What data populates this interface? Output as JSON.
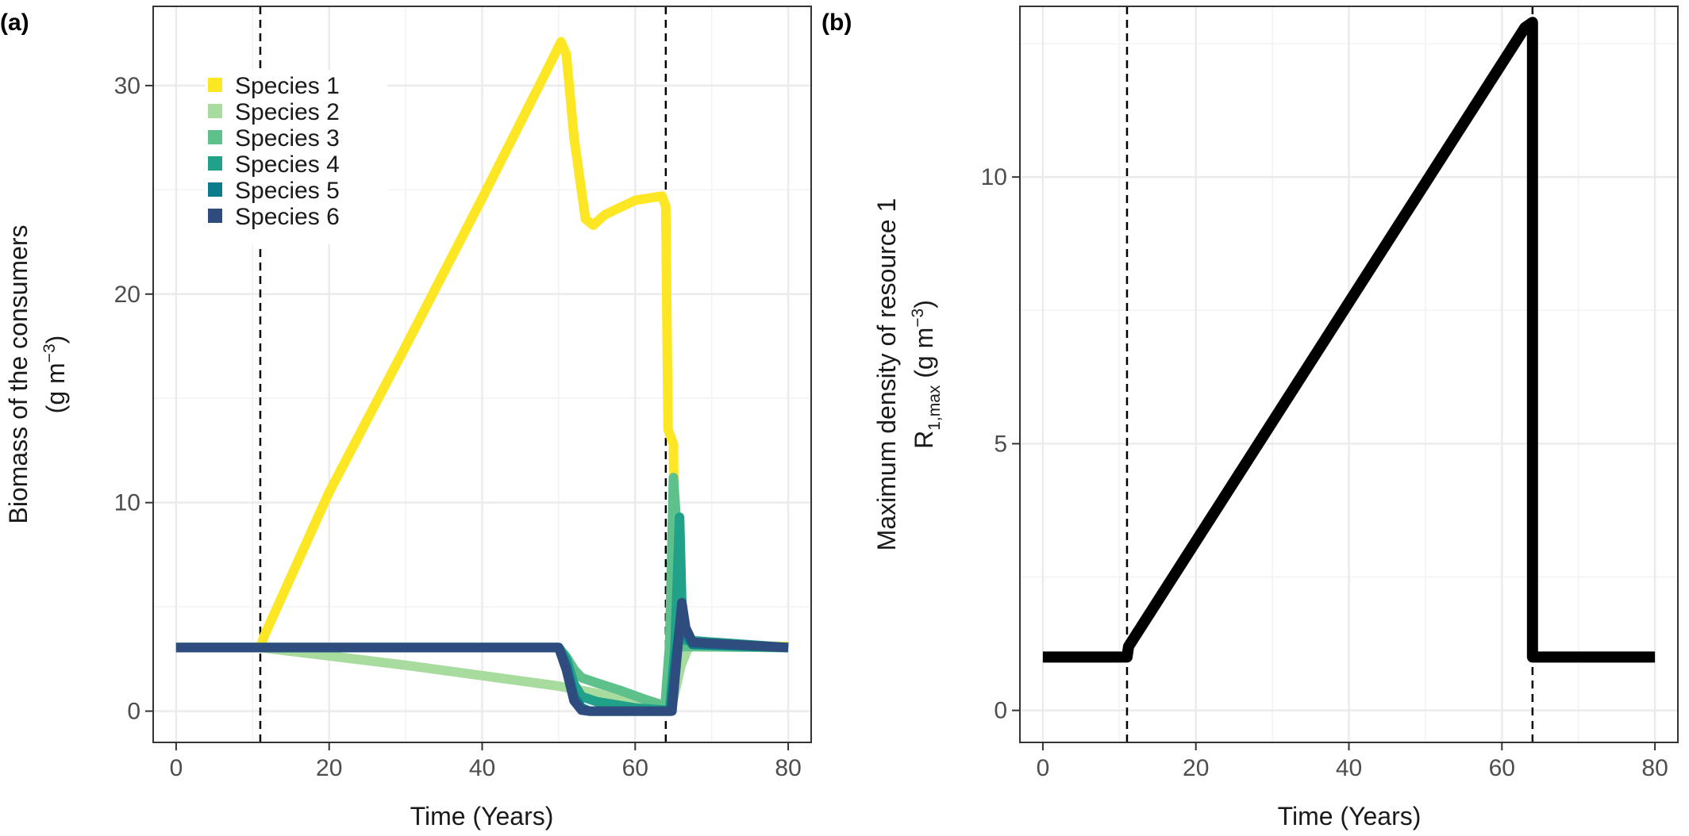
{
  "chart_data": [
    {
      "panel": "(a)",
      "type": "line",
      "xlabel": "Time (Years)",
      "ylabel_line1": "Biomass of the consumers",
      "ylabel_line2_base": "(g m",
      "ylabel_line2_sup": "−3",
      "ylabel_line2_end": ")",
      "xlim": [
        -3,
        83
      ],
      "ylim": [
        -1.5,
        33.8
      ],
      "xticks": [
        0,
        20,
        40,
        60,
        80
      ],
      "yticks": [
        0,
        10,
        20,
        30
      ],
      "grid": true,
      "legend_position": "top-left",
      "vlines": [
        11,
        64
      ],
      "series": [
        {
          "name": "Species 1",
          "color": "#FDE725",
          "points": [
            [
              0,
              3.05
            ],
            [
              11,
              3.05
            ],
            [
              11.5,
              3.6
            ],
            [
              20,
              10.5
            ],
            [
              30,
              17.5
            ],
            [
              40,
              24.6
            ],
            [
              48,
              30.4
            ],
            [
              50.3,
              32.1
            ],
            [
              51,
              31.5
            ],
            [
              52,
              27.5
            ],
            [
              53.5,
              23.6
            ],
            [
              54.5,
              23.3
            ],
            [
              56,
              23.8
            ],
            [
              60,
              24.5
            ],
            [
              63.5,
              24.7
            ],
            [
              64,
              24.2
            ],
            [
              64.3,
              13.5
            ],
            [
              65,
              12.8
            ],
            [
              65.2,
              3.3
            ],
            [
              66,
              3.2
            ],
            [
              70,
              3.1
            ],
            [
              80,
              3.1
            ]
          ]
        },
        {
          "name": "Species 2",
          "color": "#A8DB9E",
          "points": [
            [
              0,
              3.05
            ],
            [
              11,
              3.05
            ],
            [
              30,
              2.2
            ],
            [
              50,
              1.2
            ],
            [
              55,
              0.85
            ],
            [
              60,
              0.35
            ],
            [
              63.9,
              0.1
            ],
            [
              64.5,
              0.15
            ],
            [
              65,
              0.6
            ],
            [
              66,
              2.2
            ],
            [
              67,
              3.1
            ],
            [
              80,
              3.05
            ]
          ]
        },
        {
          "name": "Species 3",
          "color": "#5EC18C",
          "points": [
            [
              0,
              3.05
            ],
            [
              50,
              3.05
            ],
            [
              51,
              2.6
            ],
            [
              52,
              2.0
            ],
            [
              53,
              1.6
            ],
            [
              55,
              1.35
            ],
            [
              58,
              1.0
            ],
            [
              61,
              0.6
            ],
            [
              63.9,
              0.25
            ],
            [
              64.5,
              3.2
            ],
            [
              65,
              11.2
            ],
            [
              65.3,
              9.5
            ],
            [
              65.7,
              3.1
            ],
            [
              80,
              3.05
            ]
          ]
        },
        {
          "name": "Species 4",
          "color": "#21A08A",
          "points": [
            [
              0,
              3.05
            ],
            [
              50,
              3.05
            ],
            [
              51,
              2.5
            ],
            [
              52,
              1.3
            ],
            [
              53,
              0.7
            ],
            [
              55,
              0.45
            ],
            [
              60,
              0.15
            ],
            [
              63.9,
              0.05
            ],
            [
              64.5,
              0.05
            ],
            [
              65.2,
              3.0
            ],
            [
              65.8,
              9.3
            ],
            [
              66.1,
              5.0
            ],
            [
              66.6,
              3.4
            ],
            [
              80,
              3.05
            ]
          ]
        },
        {
          "name": "Species 5",
          "color": "#0C7B8B",
          "points": [
            [
              0,
              3.05
            ],
            [
              50,
              3.05
            ],
            [
              51,
              2.2
            ],
            [
              52,
              0.7
            ],
            [
              53,
              0.15
            ],
            [
              54,
              0
            ],
            [
              63.9,
              0
            ],
            [
              64.6,
              0
            ],
            [
              65.3,
              2.5
            ],
            [
              66,
              4.6
            ],
            [
              66.5,
              3.8
            ],
            [
              67.5,
              3.2
            ],
            [
              80,
              3.05
            ]
          ]
        },
        {
          "name": "Species 6",
          "color": "#2E4C7E",
          "points": [
            [
              0,
              3.05
            ],
            [
              50,
              3.05
            ],
            [
              51,
              2.0
            ],
            [
              52,
              0.5
            ],
            [
              53,
              0.05
            ],
            [
              54,
              0
            ],
            [
              63.9,
              0
            ],
            [
              64.8,
              0
            ],
            [
              65.5,
              2.8
            ],
            [
              66.1,
              5.2
            ],
            [
              66.6,
              4.0
            ],
            [
              67.5,
              3.3
            ],
            [
              80,
              3.05
            ]
          ]
        }
      ]
    },
    {
      "panel": "(b)",
      "type": "line",
      "xlabel": "Time (Years)",
      "ylabel_line1": "Maximum density of resource 1",
      "ylabel_line2_base": "R",
      "ylabel_line2_sub": "1,max",
      "ylabel_line2_mid": " (g m",
      "ylabel_line2_sup": "−3",
      "ylabel_line2_end": ")",
      "xlim": [
        -3,
        83
      ],
      "ylim": [
        -0.6,
        13.2
      ],
      "xticks": [
        0,
        20,
        40,
        60,
        80
      ],
      "yticks": [
        0,
        5,
        10
      ],
      "grid": true,
      "vlines": [
        11,
        64
      ],
      "series": [
        {
          "color": "#000000",
          "points": [
            [
              0,
              1
            ],
            [
              11,
              1
            ],
            [
              11.2,
              1.2
            ],
            [
              63,
              12.8
            ],
            [
              64,
              12.9
            ],
            [
              64,
              1
            ],
            [
              80,
              1
            ]
          ]
        }
      ]
    }
  ]
}
